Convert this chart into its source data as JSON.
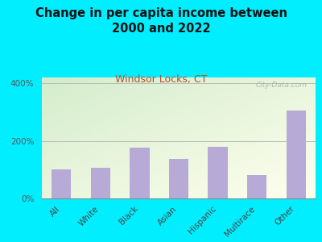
{
  "title": "Change in per capita income between\n2000 and 2022",
  "subtitle": "Windsor Locks, CT",
  "categories": [
    "All",
    "White",
    "Black",
    "Asian",
    "Hispanic",
    "Multirace",
    "Other"
  ],
  "values": [
    100,
    107,
    177,
    137,
    180,
    80,
    305
  ],
  "bar_color": "#b8aad6",
  "background_outer": "#00eeff",
  "background_plot_gradient_topleft": "#d4edcc",
  "background_plot_gradient_bottomright": "#f5f5ee",
  "title_fontsize": 10.5,
  "subtitle_fontsize": 9,
  "subtitle_color": "#b05030",
  "ylabel_ticks": [
    0,
    200,
    400
  ],
  "ylabel_labels": [
    "0%",
    "200%",
    "400%"
  ],
  "ylim": [
    0,
    420
  ],
  "watermark": "City-Data.com"
}
